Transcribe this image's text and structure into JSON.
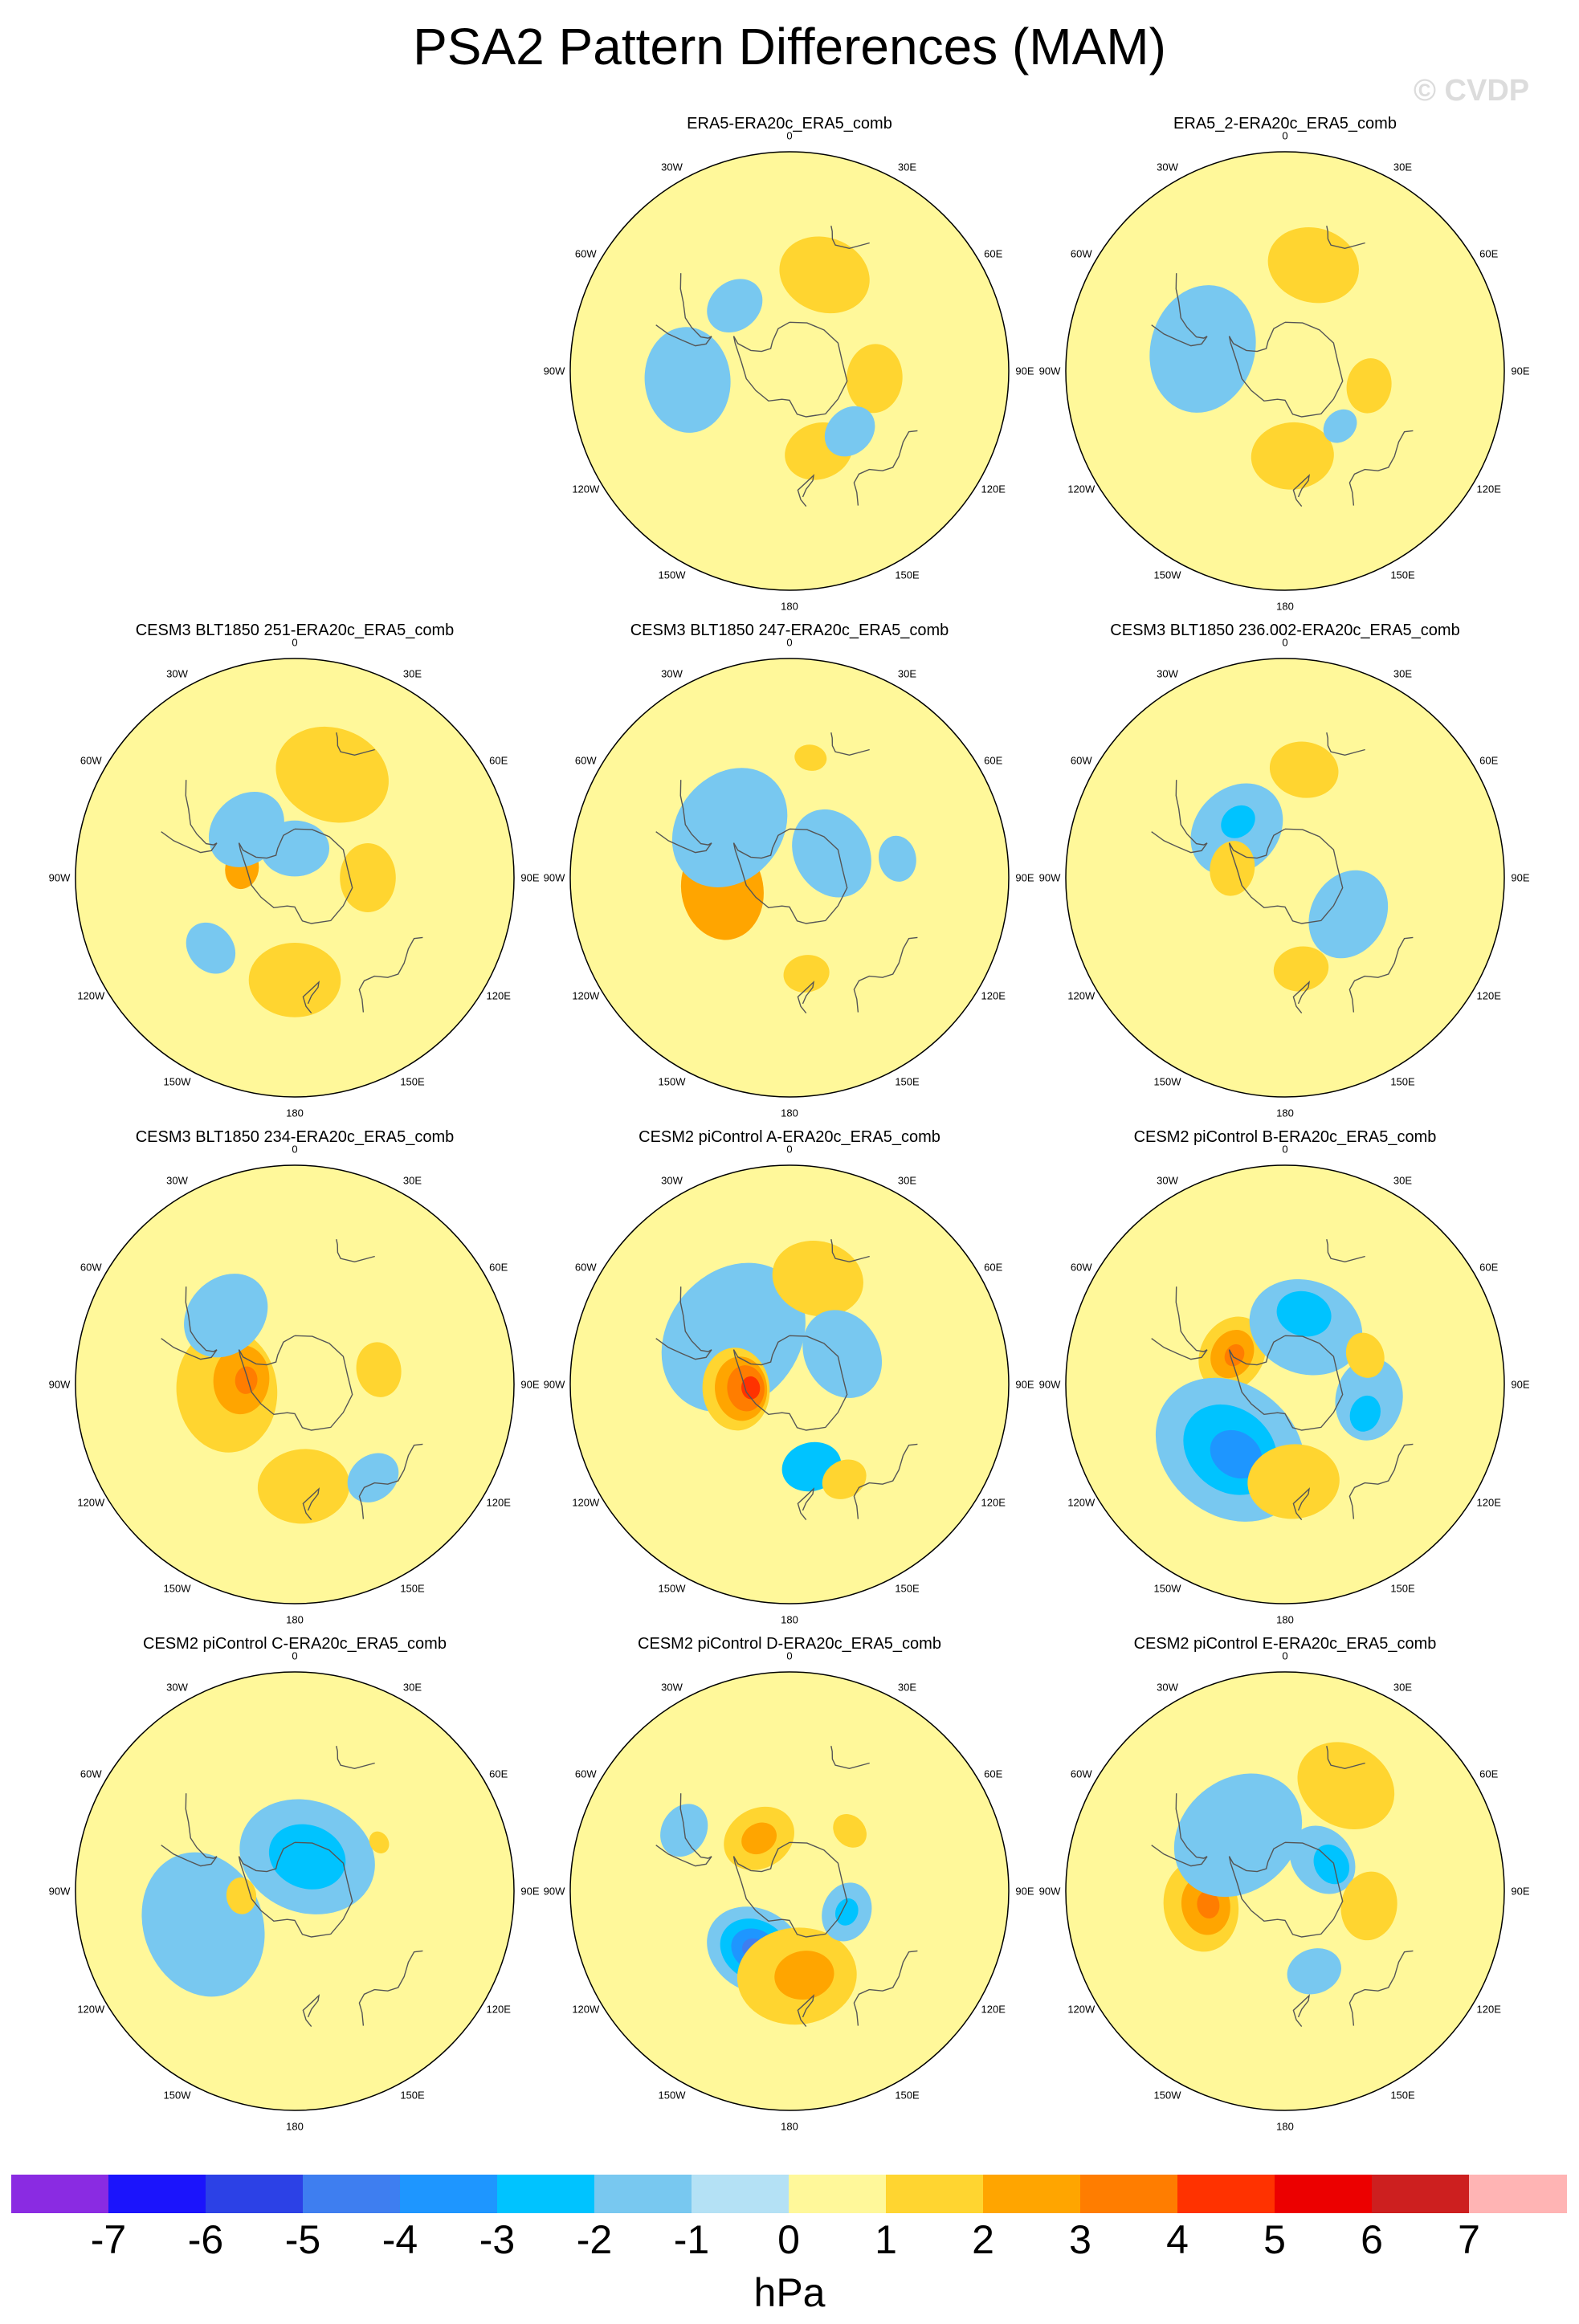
{
  "title": "PSA2 Pattern Differences (MAM)",
  "watermark": "© CVDP",
  "lon_labels": [
    "0",
    "30E",
    "60E",
    "90E",
    "120E",
    "150E",
    "180",
    "150W",
    "120W",
    "90W",
    "60W",
    "30W"
  ],
  "panels": [
    {
      "title": "ERA5-ERA20c_ERA5_comb",
      "blobs": [
        {
          "lat": -48,
          "lon": 20,
          "r": 0.2,
          "v": 1.5
        },
        {
          "lat": -55,
          "lon": 95,
          "r": 0.15,
          "v": 1.5
        },
        {
          "lat": -55,
          "lon": 160,
          "r": 0.15,
          "v": 1.5
        },
        {
          "lat": -55,
          "lon": 135,
          "r": 0.12,
          "v": -1.5
        },
        {
          "lat": -48,
          "lon": -95,
          "r": 0.23,
          "v": -1.5
        },
        {
          "lat": -55,
          "lon": -40,
          "r": 0.13,
          "v": -1.5
        }
      ]
    },
    {
      "title": "ERA5_2-ERA20c_ERA5_comb",
      "blobs": [
        {
          "lat": -45,
          "lon": 15,
          "r": 0.2,
          "v": 1.5
        },
        {
          "lat": -55,
          "lon": 100,
          "r": 0.12,
          "v": 1.5
        },
        {
          "lat": -55,
          "lon": 175,
          "r": 0.18,
          "v": 1.5
        },
        {
          "lat": -55,
          "lon": -75,
          "r": 0.28,
          "v": -1.5
        },
        {
          "lat": -58,
          "lon": 135,
          "r": 0.08,
          "v": -1.5
        }
      ]
    },
    {
      "title": "CESM3 BLT1850 251-ERA20c_ERA5_comb",
      "blobs": [
        {
          "lat": -45,
          "lon": 20,
          "r": 0.25,
          "v": 1.5
        },
        {
          "lat": -60,
          "lon": 90,
          "r": 0.15,
          "v": 1.5
        },
        {
          "lat": -48,
          "lon": 180,
          "r": 0.2,
          "v": 1.5
        },
        {
          "lat": -68,
          "lon": -80,
          "r": 0.09,
          "v": 2.5
        },
        {
          "lat": -62,
          "lon": -45,
          "r": 0.18,
          "v": -1.5
        },
        {
          "lat": -78,
          "lon": 0,
          "r": 0.15,
          "v": -1.5
        },
        {
          "lat": -45,
          "lon": -130,
          "r": 0.12,
          "v": -1.5
        }
      ]
    },
    {
      "title": "CESM3 BLT1850 247-ERA20c_ERA5_comb",
      "blobs": [
        {
          "lat": -62,
          "lon": -100,
          "r": 0.22,
          "v": 2.5
        },
        {
          "lat": -58,
          "lon": -50,
          "r": 0.28,
          "v": -1.5
        },
        {
          "lat": -70,
          "lon": 60,
          "r": 0.2,
          "v": -1.5
        },
        {
          "lat": -40,
          "lon": 10,
          "r": 0.07,
          "v": 1.5
        },
        {
          "lat": -50,
          "lon": 170,
          "r": 0.1,
          "v": 1.5
        },
        {
          "lat": -45,
          "lon": 80,
          "r": 0.1,
          "v": -1.5
        }
      ]
    },
    {
      "title": "CESM3 BLT1850 236.002-ERA20c_ERA5_comb",
      "blobs": [
        {
          "lat": -45,
          "lon": 10,
          "r": 0.15,
          "v": 1.5
        },
        {
          "lat": -62,
          "lon": -45,
          "r": 0.22,
          "v": -1.5
        },
        {
          "lat": -60,
          "lon": -40,
          "r": 0.08,
          "v": -2.5
        },
        {
          "lat": -68,
          "lon": -80,
          "r": 0.12,
          "v": 1.5
        },
        {
          "lat": -60,
          "lon": 120,
          "r": 0.2,
          "v": -1.5
        },
        {
          "lat": -52,
          "lon": 170,
          "r": 0.12,
          "v": 1.5
        }
      ]
    },
    {
      "title": "CESM3 BLT1850 234-ERA20c_ERA5_comb",
      "blobs": [
        {
          "lat": -62,
          "lon": -95,
          "r": 0.27,
          "v": 1.5
        },
        {
          "lat": -68,
          "lon": -85,
          "r": 0.15,
          "v": 2.5
        },
        {
          "lat": -70,
          "lon": -85,
          "r": 0.06,
          "v": 3.5
        },
        {
          "lat": -48,
          "lon": 175,
          "r": 0.2,
          "v": 1.5
        },
        {
          "lat": -55,
          "lon": 80,
          "r": 0.12,
          "v": 1.5
        },
        {
          "lat": -50,
          "lon": -45,
          "r": 0.2,
          "v": -1.5
        },
        {
          "lat": -40,
          "lon": 140,
          "r": 0.12,
          "v": -1.5
        }
      ]
    },
    {
      "title": "CESM2 piControl A-ERA20c_ERA5_comb",
      "blobs": [
        {
          "lat": -60,
          "lon": -50,
          "r": 0.35,
          "v": -1.5
        },
        {
          "lat": -68,
          "lon": -95,
          "r": 0.18,
          "v": 1.5
        },
        {
          "lat": -70,
          "lon": -95,
          "r": 0.14,
          "v": 2.5
        },
        {
          "lat": -72,
          "lon": -95,
          "r": 0.1,
          "v": 3.5
        },
        {
          "lat": -74,
          "lon": -95,
          "r": 0.05,
          "v": 4.5
        },
        {
          "lat": -45,
          "lon": 15,
          "r": 0.2,
          "v": 1.5
        },
        {
          "lat": -55,
          "lon": 165,
          "r": 0.13,
          "v": -2.5
        },
        {
          "lat": -65,
          "lon": 60,
          "r": 0.2,
          "v": -1.5
        },
        {
          "lat": -45,
          "lon": 150,
          "r": 0.1,
          "v": 1.5
        }
      ]
    },
    {
      "title": "CESM2 piControl B-ERA20c_ERA5_comb",
      "blobs": [
        {
          "lat": -65,
          "lon": -60,
          "r": 0.17,
          "v": 1.5
        },
        {
          "lat": -65,
          "lon": -60,
          "r": 0.11,
          "v": 2.5
        },
        {
          "lat": -66,
          "lon": -60,
          "r": 0.05,
          "v": 3.5
        },
        {
          "lat": -55,
          "lon": -140,
          "r": 0.35,
          "v": -1.5
        },
        {
          "lat": -55,
          "lon": -140,
          "r": 0.22,
          "v": -2.5
        },
        {
          "lat": -55,
          "lon": -145,
          "r": 0.12,
          "v": -3.5
        },
        {
          "lat": -65,
          "lon": 20,
          "r": 0.25,
          "v": -1.5
        },
        {
          "lat": -60,
          "lon": 15,
          "r": 0.12,
          "v": -2.5
        },
        {
          "lat": -55,
          "lon": 100,
          "r": 0.18,
          "v": -1.5
        },
        {
          "lat": -55,
          "lon": 110,
          "r": 0.08,
          "v": -2.5
        },
        {
          "lat": -50,
          "lon": 175,
          "r": 0.2,
          "v": 1.5
        },
        {
          "lat": -55,
          "lon": 70,
          "r": 0.1,
          "v": 1.5
        }
      ]
    },
    {
      "title": "CESM2 piControl C-ERA20c_ERA5_comb",
      "blobs": [
        {
          "lat": -75,
          "lon": 20,
          "r": 0.3,
          "v": -1.5
        },
        {
          "lat": -75,
          "lon": 20,
          "r": 0.17,
          "v": -2.5
        },
        {
          "lat": -50,
          "lon": -110,
          "r": 0.32,
          "v": -1.5
        },
        {
          "lat": -68,
          "lon": -95,
          "r": 0.08,
          "v": 1.5
        },
        {
          "lat": -50,
          "lon": 60,
          "r": 0.05,
          "v": 1.5
        }
      ]
    },
    {
      "title": "CESM2 piControl D-ERA20c_ERA5_comb",
      "blobs": [
        {
          "lat": -62,
          "lon": -150,
          "r": 0.22,
          "v": -1.5
        },
        {
          "lat": -62,
          "lon": -150,
          "r": 0.16,
          "v": -2.5
        },
        {
          "lat": -62,
          "lon": -150,
          "r": 0.11,
          "v": -3.5
        },
        {
          "lat": -62,
          "lon": -150,
          "r": 0.06,
          "v": -4.5
        },
        {
          "lat": -55,
          "lon": 175,
          "r": 0.26,
          "v": 1.5
        },
        {
          "lat": -55,
          "lon": 170,
          "r": 0.13,
          "v": 2.5
        },
        {
          "lat": -65,
          "lon": -30,
          "r": 0.16,
          "v": 1.5
        },
        {
          "lat": -65,
          "lon": -30,
          "r": 0.08,
          "v": 2.5
        },
        {
          "lat": -65,
          "lon": 110,
          "r": 0.13,
          "v": -1.5
        },
        {
          "lat": -65,
          "lon": 110,
          "r": 0.06,
          "v": -2.5
        },
        {
          "lat": -40,
          "lon": -60,
          "r": 0.12,
          "v": -1.5
        },
        {
          "lat": -55,
          "lon": 45,
          "r": 0.08,
          "v": 1.5
        }
      ]
    },
    {
      "title": "CESM2 piControl E-ERA20c_ERA5_comb",
      "blobs": [
        {
          "lat": -55,
          "lon": -100,
          "r": 0.2,
          "v": 1.5
        },
        {
          "lat": -57,
          "lon": -100,
          "r": 0.13,
          "v": 2.5
        },
        {
          "lat": -58,
          "lon": -100,
          "r": 0.06,
          "v": 3.5
        },
        {
          "lat": -60,
          "lon": -40,
          "r": 0.3,
          "v": -1.5
        },
        {
          "lat": -70,
          "lon": 50,
          "r": 0.16,
          "v": -1.5
        },
        {
          "lat": -68,
          "lon": 60,
          "r": 0.09,
          "v": -2.5
        },
        {
          "lat": -40,
          "lon": 30,
          "r": 0.22,
          "v": 1.5
        },
        {
          "lat": -55,
          "lon": 100,
          "r": 0.15,
          "v": 1.5
        },
        {
          "lat": -55,
          "lon": 160,
          "r": 0.12,
          "v": -1.5
        }
      ]
    }
  ],
  "colorbar": {
    "colors": [
      "#8a2be2",
      "#1b14fc",
      "#2c41e6",
      "#3e7ef0",
      "#1e96ff",
      "#00c3ff",
      "#78c8f0",
      "#b4e1f5",
      "#fff89a",
      "#ffd530",
      "#ffa500",
      "#ff7d00",
      "#ff3200",
      "#ec0000",
      "#cd1f1f",
      "#ffb4b4"
    ],
    "labels": [
      "-7",
      "-6",
      "-5",
      "-4",
      "-3",
      "-2",
      "-1",
      "0",
      "1",
      "2",
      "3",
      "4",
      "5",
      "6",
      "7"
    ],
    "units": "hPa"
  }
}
